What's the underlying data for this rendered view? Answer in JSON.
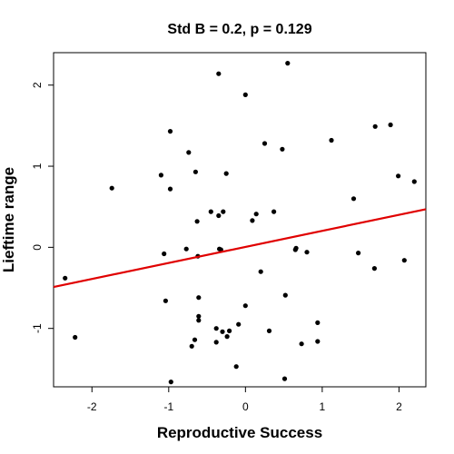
{
  "chart_data": {
    "type": "scatter",
    "title": "Std B = 0.2, p = 0.129",
    "xlabel": "Reproductive Success",
    "ylabel": "Lieftime range",
    "xlim": [
      -2.5,
      2.35
    ],
    "ylim": [
      -1.72,
      2.4
    ],
    "xticks": [
      -2,
      -1,
      0,
      1,
      2
    ],
    "xtick_labels": [
      "-2",
      "-1",
      "0",
      "1",
      "2"
    ],
    "yticks": [
      -1,
      0,
      1,
      2
    ],
    "ytick_labels": [
      "-1",
      "0",
      "1",
      "2"
    ],
    "grid": false,
    "legend": "none",
    "point_color": "#000000",
    "line_color": "#e00000",
    "regression_line": {
      "x": [
        -2.5,
        2.35
      ],
      "y": [
        -0.49,
        0.47
      ]
    },
    "points": [
      {
        "x": -2.35,
        "y": -0.38
      },
      {
        "x": -2.22,
        "y": -1.11
      },
      {
        "x": -1.74,
        "y": 0.73
      },
      {
        "x": -1.1,
        "y": 0.89
      },
      {
        "x": -1.06,
        "y": -0.08
      },
      {
        "x": -1.04,
        "y": -0.66
      },
      {
        "x": -0.98,
        "y": 1.43
      },
      {
        "x": -0.98,
        "y": 0.72
      },
      {
        "x": -0.97,
        "y": -1.66
      },
      {
        "x": -0.77,
        "y": -0.02
      },
      {
        "x": -0.74,
        "y": 1.17
      },
      {
        "x": -0.7,
        "y": -1.22
      },
      {
        "x": -0.66,
        "y": -1.14
      },
      {
        "x": -0.65,
        "y": 0.93
      },
      {
        "x": -0.63,
        "y": 0.32
      },
      {
        "x": -0.62,
        "y": -0.11
      },
      {
        "x": -0.61,
        "y": -0.62
      },
      {
        "x": -0.61,
        "y": -0.85
      },
      {
        "x": -0.61,
        "y": -0.9
      },
      {
        "x": -0.45,
        "y": 0.44
      },
      {
        "x": -0.38,
        "y": -1.0
      },
      {
        "x": -0.38,
        "y": -1.17
      },
      {
        "x": -0.35,
        "y": 2.14
      },
      {
        "x": -0.35,
        "y": 0.39
      },
      {
        "x": -0.34,
        "y": -0.02
      },
      {
        "x": -0.32,
        "y": -0.03
      },
      {
        "x": -0.3,
        "y": -1.04
      },
      {
        "x": -0.29,
        "y": 0.44
      },
      {
        "x": -0.25,
        "y": 0.91
      },
      {
        "x": -0.24,
        "y": -1.1
      },
      {
        "x": -0.21,
        "y": -1.03
      },
      {
        "x": -0.12,
        "y": -1.47
      },
      {
        "x": -0.09,
        "y": -0.95
      },
      {
        "x": 0.0,
        "y": 1.88
      },
      {
        "x": 0.0,
        "y": -0.72
      },
      {
        "x": 0.09,
        "y": 0.33
      },
      {
        "x": 0.14,
        "y": 0.41
      },
      {
        "x": 0.2,
        "y": -0.3
      },
      {
        "x": 0.25,
        "y": 1.28
      },
      {
        "x": 0.31,
        "y": -1.03
      },
      {
        "x": 0.37,
        "y": 0.44
      },
      {
        "x": 0.48,
        "y": 1.21
      },
      {
        "x": 0.51,
        "y": -1.62
      },
      {
        "x": 0.52,
        "y": -0.59
      },
      {
        "x": 0.55,
        "y": 2.27
      },
      {
        "x": 0.65,
        "y": -0.03
      },
      {
        "x": 0.66,
        "y": -0.01
      },
      {
        "x": 0.73,
        "y": -1.19
      },
      {
        "x": 0.8,
        "y": -0.06
      },
      {
        "x": 0.94,
        "y": -0.93
      },
      {
        "x": 0.94,
        "y": -1.16
      },
      {
        "x": 1.12,
        "y": 1.32
      },
      {
        "x": 1.41,
        "y": 0.6
      },
      {
        "x": 1.47,
        "y": -0.07
      },
      {
        "x": 1.68,
        "y": -0.26
      },
      {
        "x": 1.69,
        "y": 1.49
      },
      {
        "x": 1.89,
        "y": 1.51
      },
      {
        "x": 1.99,
        "y": 0.88
      },
      {
        "x": 2.07,
        "y": -0.16
      },
      {
        "x": 2.2,
        "y": 0.81
      }
    ]
  }
}
